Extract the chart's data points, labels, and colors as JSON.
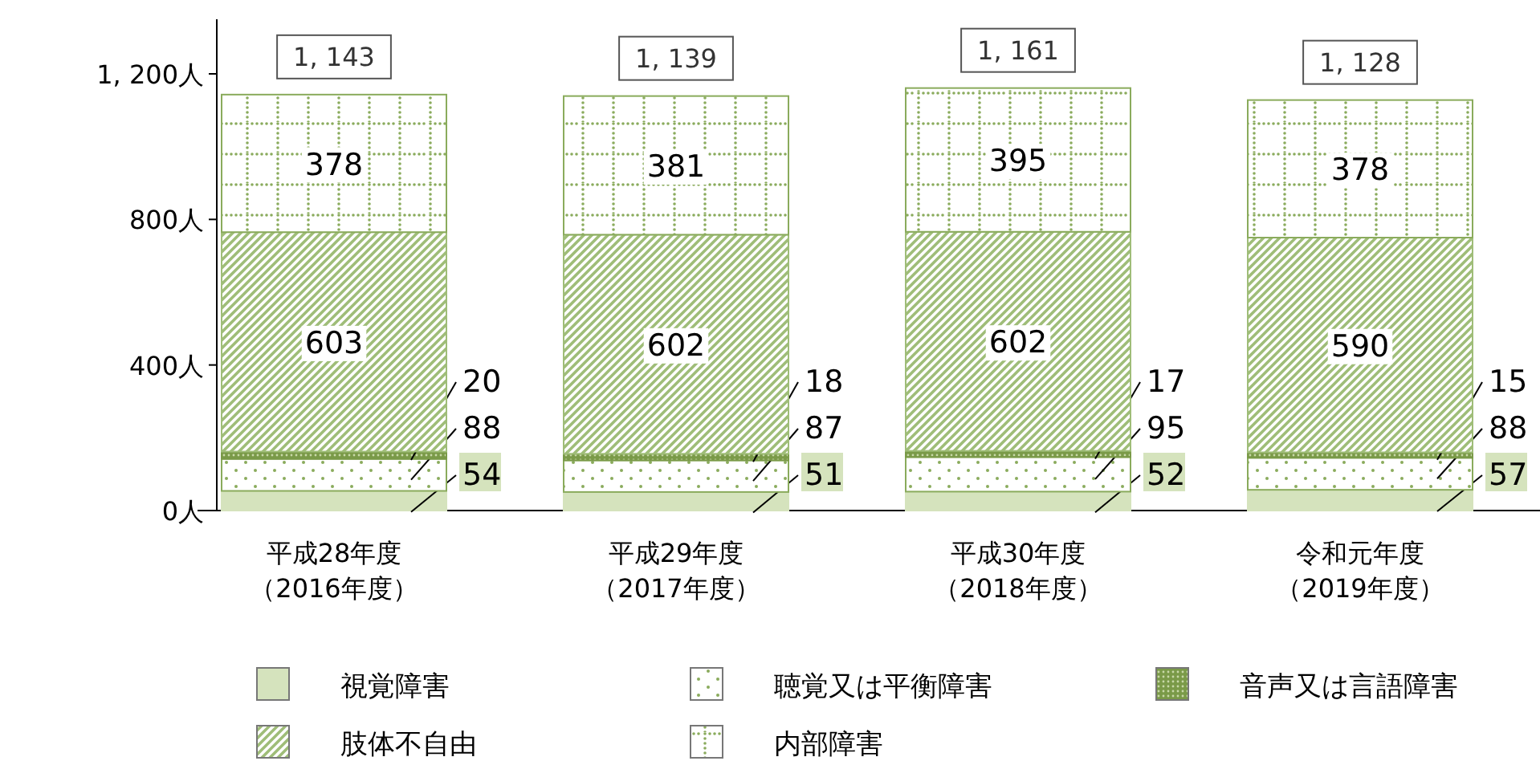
{
  "chart_data": {
    "type": "bar",
    "stacked": true,
    "categories": [
      "平成28年度（2016年度）",
      "平成29年度（2017年度）",
      "平成30年度（2018年度）",
      "令和元年度（2019年度）"
    ],
    "series": [
      {
        "name": "視覚障害",
        "color": "#d5e3bd",
        "values": [
          54,
          51,
          52,
          57
        ]
      },
      {
        "name": "聴覚又は平衡障害",
        "color": "#8aab5c",
        "values": [
          88,
          87,
          95,
          88
        ]
      },
      {
        "name": "音声又は言語障害",
        "color": "#7a9a48",
        "values": [
          20,
          18,
          17,
          15
        ]
      },
      {
        "name": "肢体不自由",
        "color": "#9fbd78",
        "values": [
          603,
          602,
          602,
          590
        ]
      },
      {
        "name": "内部障害",
        "color": "#8aab5c",
        "values": [
          378,
          381,
          395,
          378
        ]
      }
    ],
    "ylim": [
      0,
      1350
    ],
    "yticks": [
      {
        "value": 0,
        "label": "0人"
      },
      {
        "value": 400,
        "label": "400人"
      },
      {
        "value": 800,
        "label": "800人"
      },
      {
        "value": 1200,
        "label": "1, 200人"
      }
    ],
    "data_labels": true,
    "totals": [
      "1, 143",
      "1, 139",
      "1, 161",
      "1, 128"
    ],
    "legend": "bottom",
    "grid": false
  }
}
